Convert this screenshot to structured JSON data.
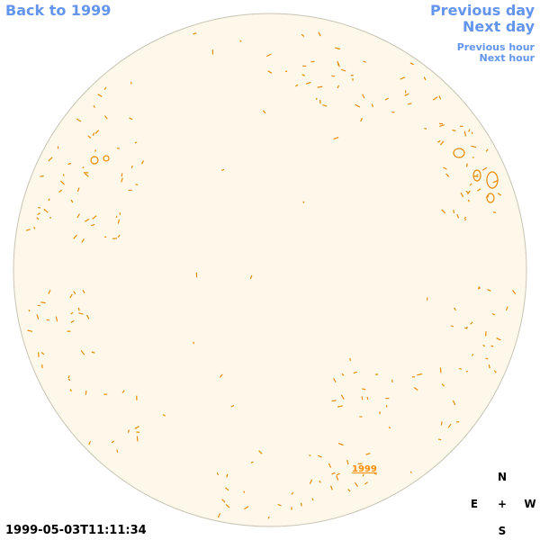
{
  "nav": {
    "back": "Back to 1999",
    "previous_day": "Previous day",
    "next_day": "Next day",
    "previous_hour": "Previous hour",
    "next_hour": "Next hour"
  },
  "timestamp": "1999-05-03T11:11:34",
  "year_link": "1999",
  "compass": {
    "north": "N",
    "south": "S",
    "east": "E",
    "west": "W",
    "center": "+"
  },
  "colors": {
    "nav": "#6495ed",
    "disk_fill": "#fdf8ea",
    "disk_edge": "#c8c4b4",
    "contour": "#e88a00"
  }
}
